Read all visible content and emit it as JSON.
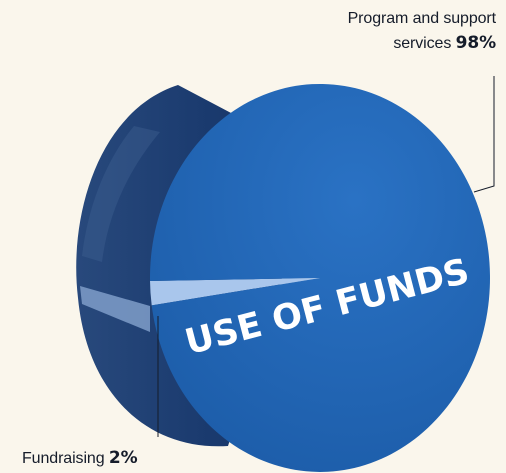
{
  "chart_data": {
    "type": "pie",
    "title": "USE OF FUNDS",
    "categories": [
      "Program and support services",
      "Fundraising"
    ],
    "values": [
      98,
      2
    ],
    "value_labels": [
      "98%",
      "2%"
    ],
    "colors": {
      "Program and support services": "#1f64b3",
      "Fundraising": "#a9c6ec",
      "background": "#faf6ec"
    },
    "style": "3d-tilted",
    "legend": "callouts"
  },
  "labels": {
    "program_line1": "Program and support",
    "program_line2": "services",
    "program_pct": "98%",
    "fundraising_name": "Fundraising",
    "fundraising_pct": "2%"
  }
}
